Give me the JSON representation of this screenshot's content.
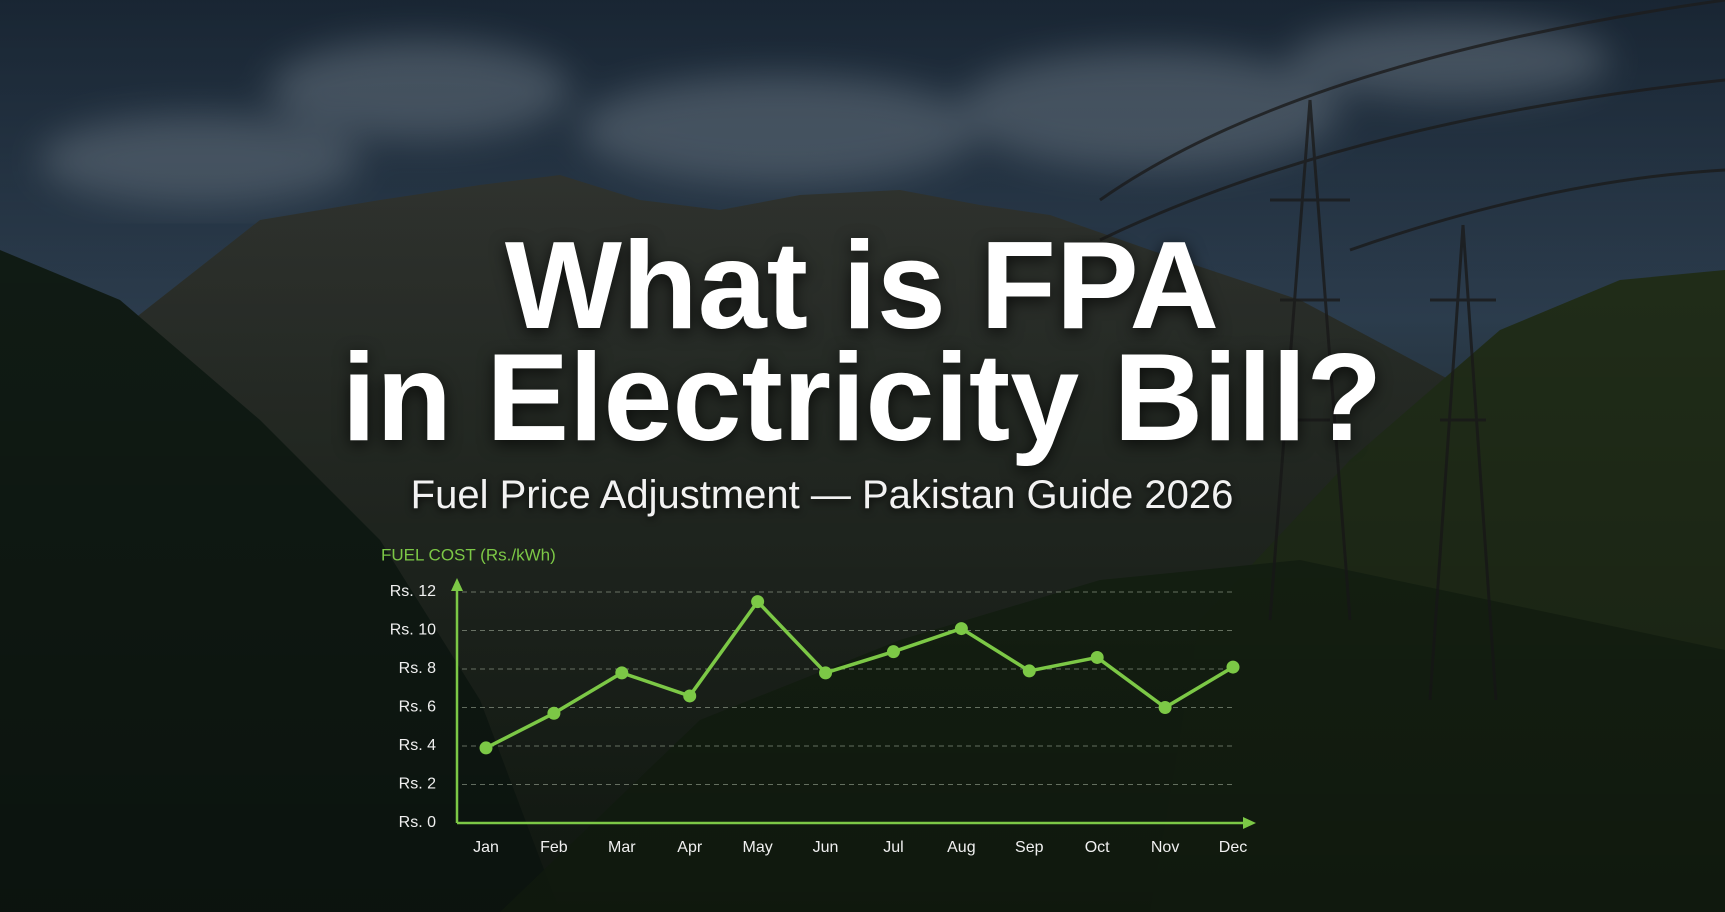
{
  "chart_data": {
    "type": "line",
    "title": [
      "What is FPA",
      "in Electricity Bill?"
    ],
    "subtitle": "Fuel Price Adjustment — Pakistan Guide 2026",
    "y_label": "FUEL COST (Rs./kWh)",
    "categories": [
      "Jan",
      "Feb",
      "Mar",
      "Apr",
      "May",
      "Jun",
      "Jul",
      "Aug",
      "Sep",
      "Oct",
      "Nov",
      "Dec"
    ],
    "series": [
      {
        "color": "#7cc846",
        "values": [
          3.9,
          5.7,
          7.8,
          6.6,
          11.5,
          7.8,
          8.9,
          10.1,
          7.9,
          8.6,
          6.0,
          8.1
        ]
      }
    ],
    "ylim": [
      0,
      12
    ],
    "yticks": [
      {
        "value": 0,
        "label": "Rs. 0"
      },
      {
        "value": 2,
        "label": "Rs. 2"
      },
      {
        "value": 4,
        "label": "Rs. 4"
      },
      {
        "value": 6,
        "label": "Rs. 6"
      },
      {
        "value": 8,
        "label": "Rs. 8"
      },
      {
        "value": 10,
        "label": "Rs. 10"
      },
      {
        "value": 12,
        "label": "Rs. 12"
      }
    ],
    "grid": true
  }
}
